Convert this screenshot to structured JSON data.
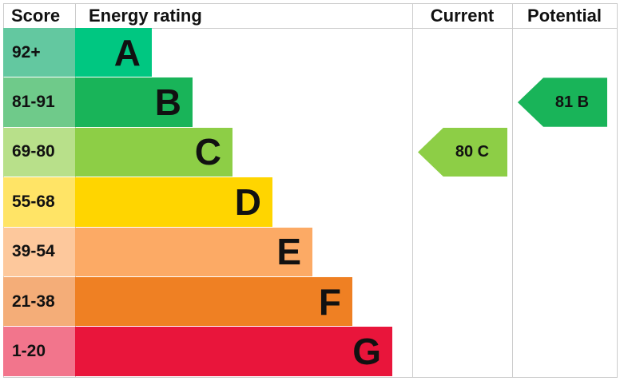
{
  "chart_data": {
    "type": "bar",
    "headers": {
      "score": "Score",
      "rating": "Energy rating",
      "current": "Current",
      "potential": "Potential"
    },
    "bands": [
      {
        "letter": "A",
        "range": "92+",
        "color": "#00c781",
        "light": "#63c8a0"
      },
      {
        "letter": "B",
        "range": "81-91",
        "color": "#19b459",
        "light": "#6fca8a"
      },
      {
        "letter": "C",
        "range": "69-80",
        "color": "#8dce46",
        "light": "#b8e08a"
      },
      {
        "letter": "D",
        "range": "55-68",
        "color": "#ffd500",
        "light": "#ffe466"
      },
      {
        "letter": "E",
        "range": "39-54",
        "color": "#fcaa65",
        "light": "#fdc89c"
      },
      {
        "letter": "F",
        "range": "21-38",
        "color": "#ef8023",
        "light": "#f4ad78"
      },
      {
        "letter": "G",
        "range": "1-20",
        "color": "#e9153b",
        "light": "#f2758c"
      }
    ],
    "current": {
      "value": 80,
      "band": "C",
      "label": "80  C",
      "color": "#8dce46"
    },
    "potential": {
      "value": 81,
      "band": "B",
      "label": "81  B",
      "color": "#19b459"
    }
  }
}
